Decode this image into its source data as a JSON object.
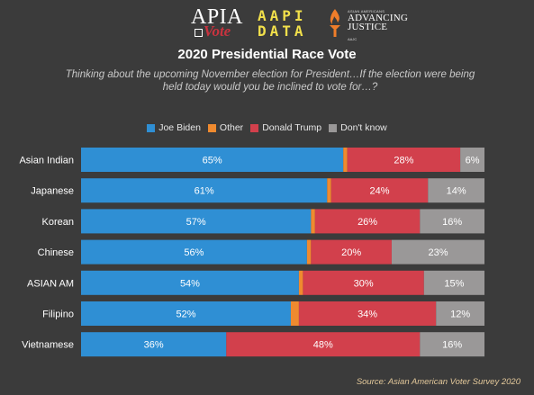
{
  "logos": {
    "apia": {
      "line1": "APIA",
      "line2": "Vote"
    },
    "aapi": {
      "line1": "AAPI",
      "line2": "DATA"
    },
    "aaj": {
      "small": "ASIAN AMERICANS",
      "line1": "ADVANCING",
      "line2": "JUSTICE",
      "tiny": "AAJC"
    }
  },
  "chart_data": {
    "type": "bar",
    "orientation": "horizontal",
    "stacked": true,
    "title": "2020 Presidential Race Vote",
    "subtitle": "Thinking about the upcoming November election for President…If the election were being held today would you be inclined to vote for…?",
    "categories": [
      "Asian Indian",
      "Japanese",
      "Korean",
      "Chinese",
      "ASIAN AM",
      "Filipino",
      "Vietnamese"
    ],
    "series": [
      {
        "name": "Joe Biden",
        "color": "#2f8fd4",
        "values": [
          65,
          61,
          57,
          56,
          54,
          52,
          36
        ],
        "labels": [
          "65%",
          "61%",
          "57%",
          "56%",
          "54%",
          "52%",
          "36%"
        ]
      },
      {
        "name": "Other",
        "color": "#ef8a2f",
        "values": [
          1,
          1,
          1,
          1,
          1,
          2,
          0
        ],
        "labels": [
          "",
          "",
          "",
          "",
          "",
          "",
          ""
        ]
      },
      {
        "name": "Donald Trump",
        "color": "#d2404c",
        "values": [
          28,
          24,
          26,
          20,
          30,
          34,
          48
        ],
        "labels": [
          "28%",
          "24%",
          "26%",
          "20%",
          "30%",
          "34%",
          "48%"
        ]
      },
      {
        "name": "Don't know",
        "color": "#9a9898",
        "values": [
          6,
          14,
          16,
          23,
          15,
          12,
          16
        ],
        "labels": [
          "6%",
          "14%",
          "16%",
          "23%",
          "15%",
          "12%",
          "16%"
        ]
      }
    ],
    "legend_position": "top",
    "grid": false
  },
  "source": "Source: Asian American Voter Survey 2020"
}
